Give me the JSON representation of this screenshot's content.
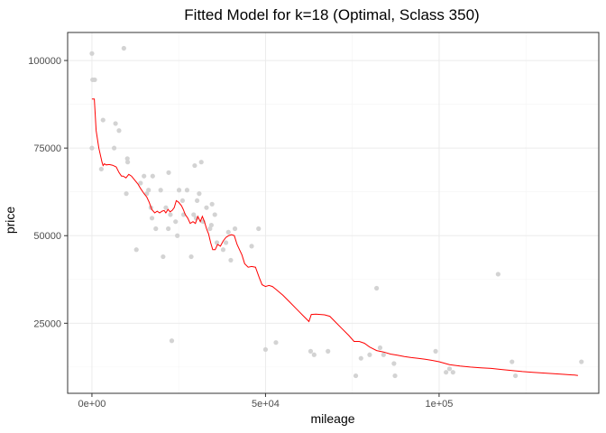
{
  "chart_data": {
    "type": "scatter",
    "title": "Fitted Model for k=18 (Optimal, Sclass 350)",
    "xlabel": "mileage",
    "ylabel": "price",
    "xlim": [
      -7000,
      146000
    ],
    "ylim": [
      5000,
      108000
    ],
    "x_ticks": [
      {
        "value": 0,
        "label": "0e+00"
      },
      {
        "value": 50000,
        "label": "5e+04"
      },
      {
        "value": 100000,
        "label": "1e+05"
      }
    ],
    "y_ticks": [
      {
        "value": 25000,
        "label": "25000"
      },
      {
        "value": 50000,
        "label": "50000"
      },
      {
        "value": 75000,
        "label": "75000"
      },
      {
        "value": 100000,
        "label": "100000"
      }
    ],
    "grid": true,
    "points_color": "#d3d3d3",
    "line_color": "#ff0000",
    "series": [
      {
        "kind": "points",
        "x": [
          0,
          0,
          200,
          800,
          9200,
          2700,
          3200,
          6400,
          6800,
          7800,
          10200,
          10300,
          9900,
          12800,
          14000,
          15000,
          15800,
          16300,
          17000,
          17500,
          18400,
          17300,
          19800,
          20500,
          21300,
          22100,
          22600,
          22000,
          23000,
          24100,
          24600,
          25100,
          26100,
          26400,
          27400,
          28600,
          29300,
          30000,
          29600,
          30900,
          30300,
          31500,
          32000,
          33000,
          34000,
          34600,
          34400,
          35400,
          36000,
          37800,
          38600,
          39300,
          40000,
          41200,
          46000,
          48000,
          50000,
          53000,
          63000,
          64000,
          68000,
          76000,
          77500,
          80000,
          82000,
          83000,
          84000,
          87000,
          87300,
          99000,
          102000,
          103000,
          104000,
          117000,
          121000,
          122000,
          141000
        ],
        "y": [
          102000,
          75000,
          94500,
          94500,
          103500,
          69000,
          83000,
          75000,
          82000,
          80000,
          72000,
          71000,
          62000,
          46000,
          65000,
          67000,
          62000,
          63000,
          58000,
          67000,
          52000,
          55000,
          63000,
          44000,
          58000,
          68000,
          56000,
          52000,
          20000,
          54000,
          50000,
          63000,
          60000,
          56000,
          63000,
          44000,
          56000,
          55000,
          70000,
          62000,
          60000,
          71000,
          54000,
          58000,
          52000,
          59000,
          53000,
          56000,
          48000,
          46000,
          48000,
          51000,
          43000,
          52000,
          47000,
          52000,
          17500,
          19500,
          17000,
          16000,
          17000,
          10000,
          15000,
          16000,
          35000,
          18000,
          16000,
          13500,
          10000,
          17000,
          11000,
          12000,
          11000,
          39000,
          14000,
          10000,
          14000
        ]
      },
      {
        "kind": "line",
        "x": [
          0,
          700,
          1200,
          2000,
          2900,
          3200,
          3600,
          4100,
          5000,
          6000,
          7000,
          7800,
          8500,
          9000,
          9800,
          10600,
          11400,
          12200,
          13200,
          14000,
          15000,
          15800,
          16500,
          17200,
          18100,
          18800,
          19500,
          20200,
          20800,
          21300,
          21900,
          22500,
          23100,
          23700,
          24300,
          25000,
          25800,
          26300,
          26900,
          27600,
          28300,
          29100,
          29800,
          30500,
          31200,
          31800,
          32400,
          33000,
          33600,
          34200,
          34800,
          35500,
          36200,
          37000,
          37800,
          38600,
          39400,
          40200,
          41000,
          41800,
          42500,
          43200,
          44000,
          45000,
          46000,
          47100,
          48200,
          49000,
          50000,
          51000,
          52000,
          53000,
          55000,
          57000,
          59000,
          61000,
          62500,
          63200,
          64500,
          67000,
          68500,
          70000,
          72000,
          74000,
          75500,
          77000,
          78500,
          80000,
          82000,
          84000,
          86000,
          88000,
          90000,
          92000,
          94000,
          96000,
          98000,
          100000,
          103000,
          106000,
          109000,
          112000,
          115000,
          118000,
          121000,
          124000,
          127000,
          130000,
          133000,
          136000,
          139000,
          140000
        ],
        "y": [
          89000,
          89000,
          80000,
          75000,
          71000,
          70000,
          70500,
          70200,
          70300,
          70100,
          69600,
          68000,
          67000,
          67000,
          66500,
          67500,
          67000,
          66000,
          64800,
          63500,
          62000,
          61000,
          59500,
          57500,
          56500,
          57000,
          56500,
          57000,
          57200,
          56500,
          57500,
          56800,
          57200,
          58000,
          60000,
          59500,
          58500,
          57500,
          56000,
          55000,
          53500,
          54000,
          53500,
          55500,
          54000,
          55500,
          54000,
          52000,
          50500,
          48000,
          46000,
          46000,
          47500,
          47000,
          48500,
          49500,
          50000,
          50300,
          50000,
          47500,
          46000,
          44500,
          42000,
          41000,
          41200,
          41000,
          38000,
          36000,
          35500,
          35800,
          35500,
          34700,
          33000,
          31000,
          29000,
          27000,
          25500,
          27500,
          27600,
          27400,
          27000,
          25500,
          23500,
          21500,
          19800,
          19800,
          19300,
          18200,
          17200,
          16800,
          16200,
          15900,
          15500,
          15200,
          15000,
          14700,
          14400,
          14000,
          13200,
          12800,
          12500,
          12300,
          12100,
          11800,
          11500,
          11200,
          11000,
          10800,
          10600,
          10400,
          10200,
          10100
        ]
      }
    ]
  }
}
